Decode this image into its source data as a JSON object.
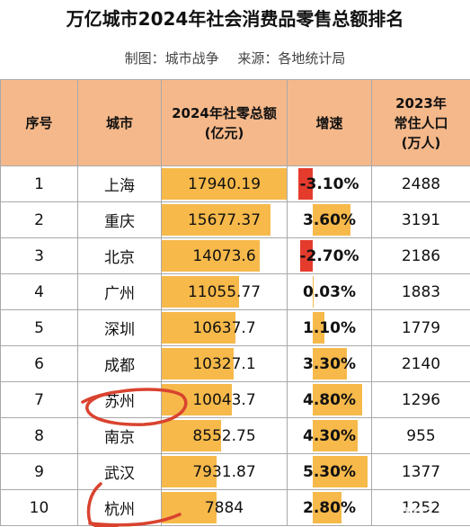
{
  "title": "万亿城市2024年社会消费品零售总额排名",
  "subtitle": {
    "maker": "制图：城市战争",
    "source": "来源：各地统计局"
  },
  "table": {
    "headers": {
      "rank": "序号",
      "city": "城市",
      "retail_line1": "2024年社零总额",
      "retail_line2": "(亿元)",
      "growth": "增速",
      "pop_line1": "2023年",
      "pop_line2": "常住人口",
      "pop_line3": "(万人)"
    },
    "rows": [
      {
        "rank": "1",
        "city": "上海",
        "retail": "17940.19",
        "retail_value": 17940.19,
        "growth": "-3.10%",
        "growth_value": -3.1,
        "population": "2488"
      },
      {
        "rank": "2",
        "city": "重庆",
        "retail": "15677.37",
        "retail_value": 15677.37,
        "growth": "3.60%",
        "growth_value": 3.6,
        "population": "3191"
      },
      {
        "rank": "3",
        "city": "北京",
        "retail": "14073.6",
        "retail_value": 14073.6,
        "growth": "-2.70%",
        "growth_value": -2.7,
        "population": "2186"
      },
      {
        "rank": "4",
        "city": "广州",
        "retail": "11055.77",
        "retail_value": 11055.77,
        "growth": "0.03%",
        "growth_value": 0.03,
        "population": "1883"
      },
      {
        "rank": "5",
        "city": "深圳",
        "retail": "10637.7",
        "retail_value": 10637.7,
        "growth": "1.10%",
        "growth_value": 1.1,
        "population": "1779"
      },
      {
        "rank": "6",
        "city": "成都",
        "retail": "10327.1",
        "retail_value": 10327.1,
        "growth": "3.30%",
        "growth_value": 3.3,
        "population": "2140"
      },
      {
        "rank": "7",
        "city": "苏州",
        "retail": "10043.7",
        "retail_value": 10043.7,
        "growth": "4.80%",
        "growth_value": 4.8,
        "population": "1296"
      },
      {
        "rank": "8",
        "city": "南京",
        "retail": "8552.75",
        "retail_value": 8552.75,
        "growth": "4.30%",
        "growth_value": 4.3,
        "population": "955"
      },
      {
        "rank": "9",
        "city": "武汉",
        "retail": "7931.87",
        "retail_value": 7931.87,
        "growth": "5.30%",
        "growth_value": 5.3,
        "population": "1377"
      },
      {
        "rank": "10",
        "city": "杭州",
        "retail": "7884",
        "retail_value": 7884,
        "growth": "2.80%",
        "growth_value": 2.8,
        "population": "1252"
      }
    ]
  },
  "colors": {
    "header_bg": "#f5b88a",
    "bar": "#f6b94a",
    "negative_bar": "#e53b2d",
    "annotation": "#d9432f"
  },
  "annotations": {
    "handwriting_color": "#d9432f",
    "circled_cities": [
      "苏州",
      "杭州"
    ]
  },
  "watermark": "NG…"
}
